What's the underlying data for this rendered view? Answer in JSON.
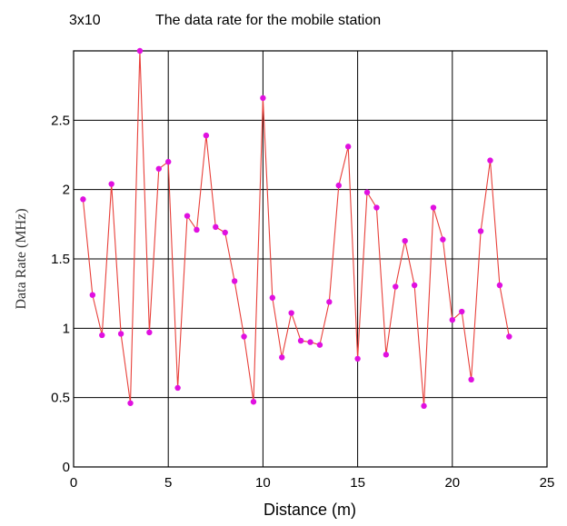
{
  "title_prefix": "3x10",
  "title": "The data rate for the mobile station",
  "chart_data": {
    "type": "line",
    "xlabel": "Distance (m)",
    "ylabel": "Data Rate (MHz)",
    "xlim": [
      0,
      25
    ],
    "ylim": [
      0,
      3.0
    ],
    "xticks": [
      0,
      5,
      10,
      15,
      20,
      25
    ],
    "yticks": [
      0,
      0.5,
      1,
      1.5,
      2,
      2.5
    ],
    "ytick_labels": [
      "0",
      "0.5",
      "1",
      "1.5",
      "2",
      "2.5"
    ],
    "grid": true,
    "colors": {
      "line": "#e8403a",
      "marker": "#e010e0",
      "grid": "#000000"
    },
    "series": [
      {
        "x": [
          0.5,
          1,
          1.5,
          2,
          2.5,
          3,
          3.5,
          4,
          4.5,
          5,
          5.5,
          6,
          6.5,
          7,
          7.5,
          8,
          8.5,
          9,
          9.5,
          10,
          10.5,
          11,
          11.5,
          12,
          12.5,
          13,
          13.5,
          14,
          14.5,
          15,
          15.5,
          16,
          16.5,
          17,
          17.5,
          18,
          18.5,
          19,
          19.5,
          20,
          20.5,
          21,
          21.5,
          22,
          22.5,
          23
        ],
        "y": [
          1.93,
          1.24,
          0.95,
          2.04,
          0.96,
          0.46,
          3.0,
          0.97,
          2.15,
          2.2,
          0.57,
          1.81,
          1.71,
          2.39,
          1.73,
          1.69,
          1.34,
          0.94,
          0.47,
          2.66,
          1.22,
          0.79,
          1.11,
          0.91,
          0.9,
          0.88,
          1.19,
          2.03,
          2.31,
          0.78,
          1.98,
          1.87,
          0.81,
          1.3,
          1.63,
          1.31,
          0.44,
          1.87,
          1.64,
          1.06,
          1.12,
          0.63,
          1.7,
          2.21,
          1.31,
          0.94
        ]
      }
    ]
  }
}
